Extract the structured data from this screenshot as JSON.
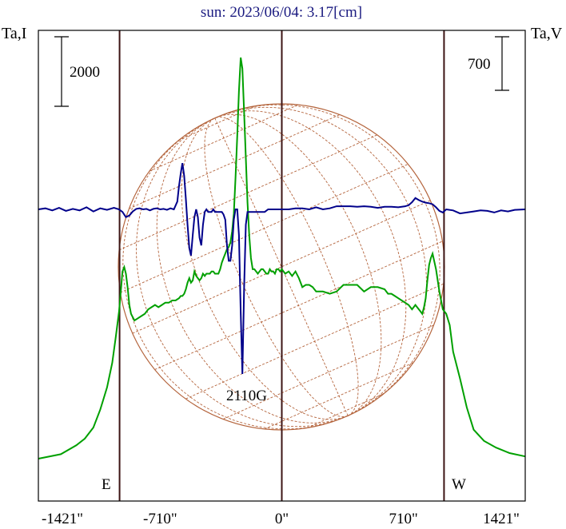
{
  "chart_data": {
    "type": "line",
    "title": "sun: 2023/06/04: 3.17[cm]",
    "ylabel_left": "Ta,I",
    "ylabel_right": "Ta,V",
    "scale_bar_left": "2000",
    "scale_bar_right": "700",
    "annotation": "2110G",
    "east_label": "E",
    "west_label": "W",
    "x_ticks": [
      "-1421\"",
      "-710\"",
      "0\"",
      "710\"",
      "1421\""
    ],
    "xlim": [
      -1421,
      1421
    ],
    "vertical_markers": [
      -947,
      0,
      947
    ],
    "colors": {
      "stokes_i": "#00a000",
      "stokes_v": "#00008b",
      "disk": "#b4643c",
      "frame": "#000000",
      "marker": "#3c1414"
    },
    "series": [
      {
        "x": [
          -1421,
          -1290,
          -1200,
          -1150,
          -1100,
          -1060,
          -1020,
          -990,
          -970,
          -950,
          -940,
          -930,
          -920,
          -910,
          -900,
          -890,
          -880,
          -860,
          -840,
          -820,
          -800,
          -780,
          -760,
          -740,
          -720,
          -700,
          -680,
          -660,
          -640,
          -620,
          -600,
          -590,
          -580,
          -570,
          -560,
          -550,
          -540,
          -530,
          -520,
          -510,
          -500,
          -490,
          -480,
          -470,
          -460,
          -450,
          -440,
          -430,
          -420,
          -410,
          -400,
          -390,
          -380,
          -370,
          -360,
          -350,
          -340,
          -330,
          -320,
          -310,
          -300,
          -290,
          -280,
          -270,
          -260,
          -250,
          -240,
          -230,
          -220,
          -210,
          -200,
          -190,
          -180,
          -170,
          -160,
          -150,
          -140,
          -130,
          -120,
          -110,
          -100,
          -90,
          -80,
          -70,
          -60,
          -50,
          -40,
          -30,
          -20,
          -10,
          0,
          20,
          40,
          60,
          80,
          100,
          120,
          140,
          160,
          180,
          200,
          240,
          280,
          320,
          360,
          400,
          440,
          480,
          520,
          560,
          600,
          620,
          640,
          660,
          680,
          700,
          720,
          740,
          760,
          780,
          800,
          810,
          820,
          830,
          840,
          850,
          860,
          870,
          880,
          900,
          920,
          940,
          960,
          980,
          1000,
          1040,
          1080,
          1120,
          1180,
          1250,
          1330,
          1421
        ],
        "values": [
          0,
          200,
          600,
          900,
          1400,
          2200,
          3200,
          4300,
          5400,
          6600,
          7500,
          8400,
          8600,
          8300,
          7700,
          6900,
          6500,
          6200,
          6300,
          6400,
          6500,
          6700,
          6800,
          6900,
          6800,
          6900,
          7000,
          7000,
          7100,
          7100,
          7200,
          7300,
          7300,
          7400,
          7600,
          7900,
          8100,
          7900,
          8000,
          8400,
          8200,
          8100,
          8000,
          8100,
          8300,
          8200,
          8300,
          8300,
          8300,
          8400,
          8400,
          8300,
          8300,
          8300,
          8500,
          8800,
          9000,
          9200,
          9400,
          9500,
          9700,
          10200,
          11000,
          12600,
          14500,
          16500,
          18000,
          17500,
          15500,
          13500,
          11500,
          10000,
          9000,
          8500,
          8500,
          8400,
          8300,
          8400,
          8500,
          8500,
          8400,
          8300,
          8300,
          8500,
          8400,
          8400,
          8300,
          8500,
          8500,
          8400,
          8500,
          8300,
          8400,
          8200,
          8400,
          8100,
          7700,
          7800,
          7800,
          7700,
          7500,
          7500,
          7400,
          7500,
          7800,
          7800,
          7800,
          7500,
          7700,
          7700,
          7600,
          7400,
          7400,
          7300,
          7200,
          7100,
          7000,
          6900,
          6700,
          6900,
          6700,
          6600,
          6500,
          6800,
          7200,
          8000,
          8700,
          9000,
          9200,
          8500,
          7500,
          6700,
          6500,
          6000,
          4800,
          3600,
          2300,
          1300,
          800,
          500,
          250,
          100
        ],
        "name": ""
      },
      {
        "x": [
          -1421,
          -1380,
          -1340,
          -1300,
          -1260,
          -1220,
          -1180,
          -1140,
          -1100,
          -1060,
          -1020,
          -980,
          -950,
          -930,
          -910,
          -890,
          -870,
          -850,
          -830,
          -810,
          -790,
          -770,
          -750,
          -730,
          -710,
          -690,
          -670,
          -650,
          -630,
          -610,
          -600,
          -590,
          -580,
          -570,
          -560,
          -550,
          -540,
          -530,
          -520,
          -510,
          -500,
          -490,
          -480,
          -470,
          -460,
          -450,
          -440,
          -430,
          -420,
          -410,
          -400,
          -390,
          -380,
          -370,
          -360,
          -350,
          -340,
          -330,
          -320,
          -310,
          -300,
          -290,
          -280,
          -270,
          -260,
          -250,
          -240,
          -230,
          -220,
          -210,
          -200,
          -180,
          -160,
          -140,
          -120,
          -100,
          -80,
          -60,
          -40,
          -20,
          0,
          40,
          80,
          120,
          160,
          200,
          240,
          280,
          320,
          360,
          400,
          440,
          480,
          520,
          560,
          600,
          640,
          680,
          720,
          740,
          760,
          780,
          800,
          820,
          840,
          860,
          880,
          900,
          920,
          940,
          960,
          1000,
          1040,
          1080,
          1120,
          1160,
          1200,
          1240,
          1280,
          1320,
          1360,
          1421
        ],
        "values": [
          0,
          20,
          -20,
          30,
          -30,
          10,
          -20,
          40,
          -40,
          20,
          -10,
          30,
          0,
          -50,
          -150,
          -120,
          -40,
          10,
          20,
          0,
          10,
          -20,
          10,
          20,
          0,
          10,
          -10,
          20,
          0,
          150,
          450,
          700,
          900,
          650,
          200,
          -300,
          -750,
          -900,
          -500,
          -150,
          0,
          -150,
          -550,
          -700,
          -300,
          -50,
          0,
          -50,
          -50,
          -50,
          0,
          -50,
          -50,
          -50,
          -50,
          -50,
          -100,
          -200,
          -700,
          -1000,
          -1000,
          -700,
          -200,
          0,
          0,
          -500,
          -2000,
          -3200,
          -1500,
          -300,
          -50,
          -50,
          -50,
          -50,
          -50,
          -50,
          0,
          0,
          0,
          0,
          0,
          0,
          20,
          20,
          0,
          40,
          0,
          20,
          60,
          60,
          60,
          50,
          60,
          50,
          30,
          50,
          50,
          40,
          60,
          80,
          140,
          220,
          180,
          150,
          130,
          120,
          100,
          40,
          -30,
          -60,
          0,
          -20,
          -80,
          -60,
          -40,
          -20,
          -30,
          -60,
          -20,
          -40,
          -10,
          0
        ],
        "name": ""
      }
    ]
  }
}
